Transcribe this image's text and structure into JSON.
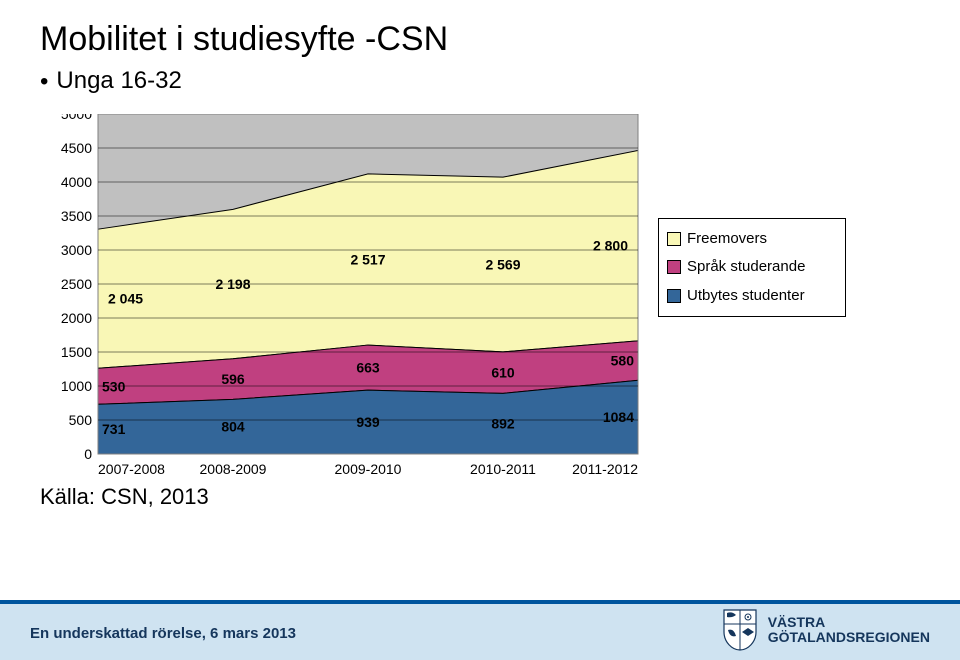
{
  "title": "Mobilitet i studiesyfte -CSN",
  "subtitle": "Unga 16-32",
  "source": "Källa: CSN, 2013",
  "footer_text": "En underskattad rörelse, 6 mars 2013",
  "logo_text_line1": "VÄSTRA",
  "logo_text_line2": "GÖTALANDSREGIONEN",
  "chart": {
    "type": "stacked-area",
    "background_color": "#c0c0c0",
    "grid_color": "#000000",
    "ylim": [
      0,
      5000
    ],
    "ytick_step": 500,
    "yticks": [
      "0",
      "500",
      "1000",
      "1500",
      "2000",
      "2500",
      "3000",
      "3500",
      "4000",
      "4500",
      "5000"
    ],
    "ytick_fontsize": 14,
    "categories": [
      "2007-2008",
      "2008-2009",
      "2009-2010",
      "2010-2011",
      "2011-2012"
    ],
    "xtick_fontsize": 14,
    "series": [
      {
        "name": "Utbytes studenter",
        "color": "#336699",
        "values": [
          731,
          804,
          939,
          892,
          1084
        ]
      },
      {
        "name": "Språk studerande",
        "color": "#c04080",
        "values": [
          530,
          596,
          663,
          610,
          580
        ]
      },
      {
        "name": "Freemovers",
        "color": "#f9f7b6",
        "values": [
          2045,
          2198,
          2517,
          2569,
          2800
        ]
      }
    ],
    "data_label_fontsize": 14,
    "legend": [
      {
        "label": "Freemovers",
        "color": "#f9f7b6"
      },
      {
        "label": "Språk studerande",
        "color": "#c04080"
      },
      {
        "label": "Utbytes studenter",
        "color": "#336699"
      }
    ],
    "label_positions": {
      "freemovers": [
        "2 045",
        "2 198",
        "2 517",
        "2 569",
        "2 800"
      ],
      "sprak": [
        "530",
        "596",
        "663",
        "610",
        "580"
      ],
      "utbytes": [
        "731",
        "804",
        "939",
        "892",
        "1084"
      ]
    }
  }
}
